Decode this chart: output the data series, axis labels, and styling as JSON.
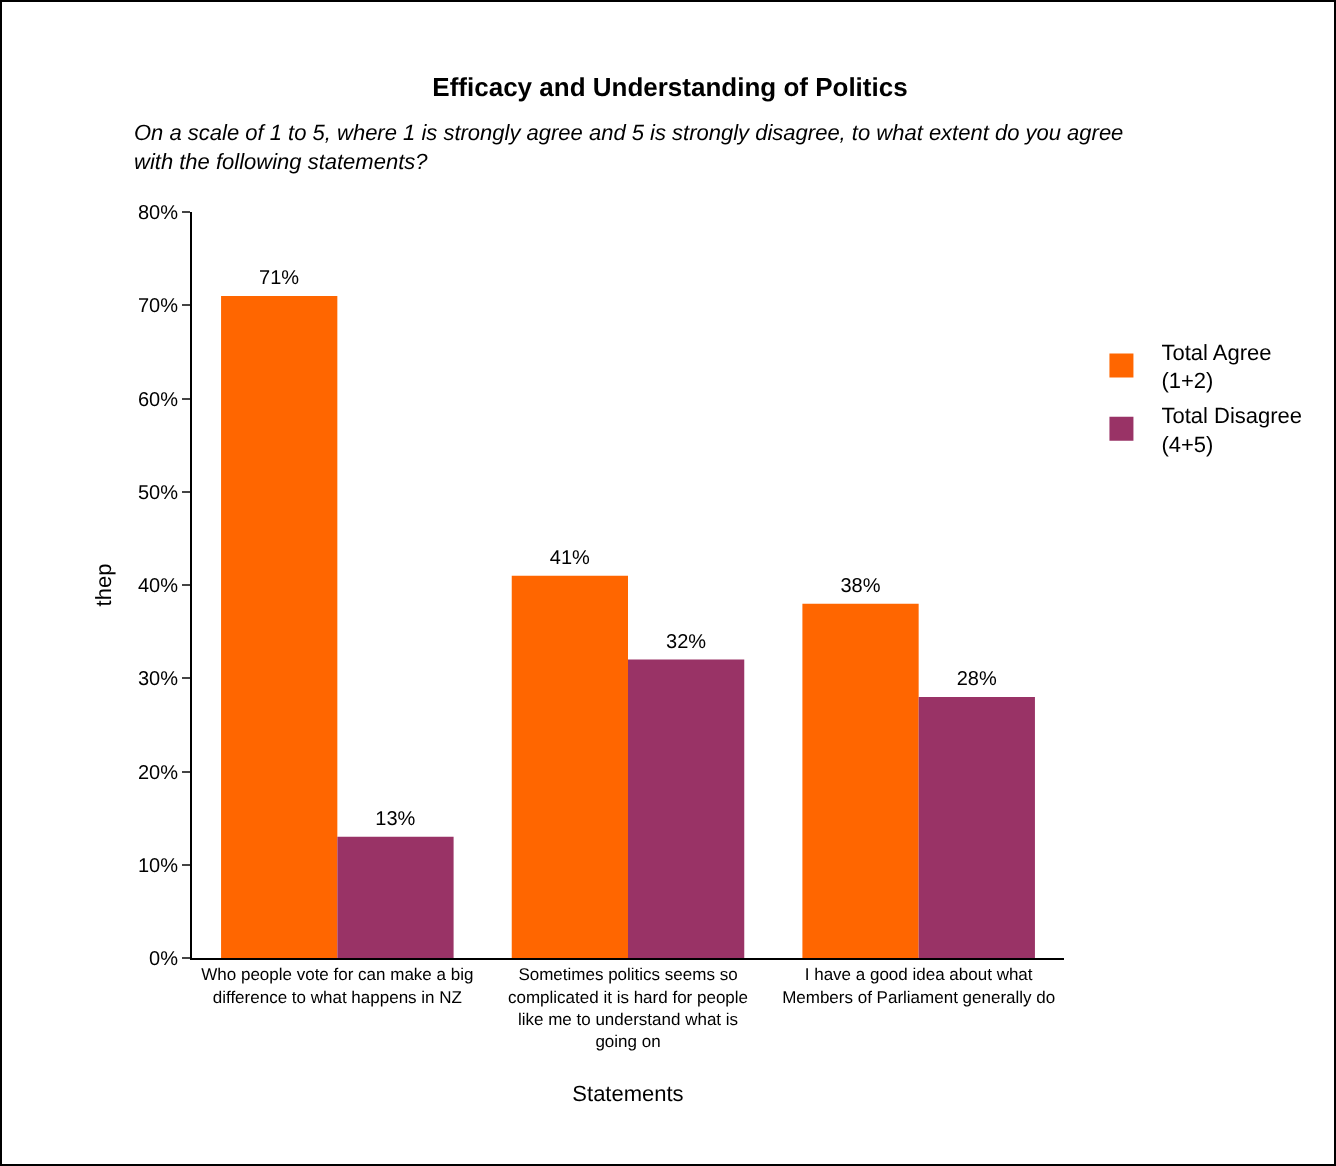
{
  "chart_data": {
    "type": "bar",
    "title": "Efficacy and Understanding of Politics",
    "subtitle": "On a scale of 1 to 5, where 1 is strongly agree and 5 is strongly disagree, to what extent do you agree with the following statements?",
    "xlabel": "Statements",
    "ylabel": "thep",
    "categories": [
      "Who people vote for can make a big difference to what happens in NZ",
      "Sometimes politics seems so complicated it is hard for people like me to understand what is going on",
      "I have a good idea about what Members of Parliament generally do"
    ],
    "series": [
      {
        "name": "Total Agree (1+2)",
        "color": "#ff6600",
        "values": [
          71,
          41,
          38
        ],
        "value_labels": [
          "71%",
          "41%",
          "38%"
        ]
      },
      {
        "name": "Total Disagree (4+5)",
        "color": "#993366",
        "values": [
          13,
          32,
          28
        ],
        "value_labels": [
          "13%",
          "32%",
          "28%"
        ]
      }
    ],
    "ylim": [
      0,
      80
    ],
    "yticks": [
      {
        "value": 0,
        "label": "0%"
      },
      {
        "value": 10,
        "label": "10%"
      },
      {
        "value": 20,
        "label": "20%"
      },
      {
        "value": 30,
        "label": "30%"
      },
      {
        "value": 40,
        "label": "40%"
      },
      {
        "value": 50,
        "label": "50%"
      },
      {
        "value": 60,
        "label": "60%"
      },
      {
        "value": 70,
        "label": "70%"
      },
      {
        "value": 80,
        "label": "80%"
      }
    ],
    "grid": false,
    "legend": "right"
  }
}
